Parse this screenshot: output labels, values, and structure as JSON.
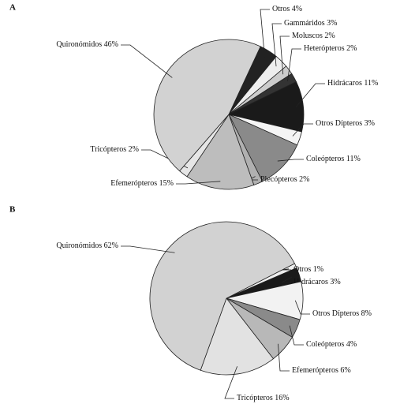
{
  "chart_data": [
    {
      "type": "pie",
      "title": "A",
      "categories": [
        "Otros",
        "Gammáridos",
        "Moluscos",
        "Heterópteros",
        "Hidrácaros",
        "Otros Dípteros",
        "Coleópteros",
        "Plecópteros",
        "Efemerópteros",
        "Tricópteros",
        "Quironómidos"
      ],
      "values": [
        4,
        3,
        2,
        2,
        11,
        3,
        11,
        2,
        15,
        2,
        46
      ],
      "value_labels": [
        "4%",
        "3%",
        "2%",
        "2%",
        "11%",
        "3%",
        "11%",
        "2%",
        "15%",
        "2%",
        "46%"
      ],
      "colors": [
        "#222222",
        "#eeeeee",
        "#cccccc",
        "#333333",
        "#1a1a1a",
        "#f4f4f4",
        "#8a8a8a",
        "#b0b0b0",
        "#bdbdbd",
        "#e6e6e6",
        "#d2d2d2"
      ]
    },
    {
      "type": "pie",
      "title": "B",
      "categories": [
        "Otros",
        "Hidrácaros",
        "Otros Dípteros",
        "Coleópteros",
        "Efemerópteros",
        "Tricópteros",
        "Quironómidos"
      ],
      "values": [
        1,
        3,
        8,
        4,
        6,
        16,
        62
      ],
      "value_labels": [
        "1%",
        "3%",
        "8%",
        "4%",
        "6%",
        "16%",
        "62%"
      ],
      "colors": [
        "#eeeeee",
        "#1a1a1a",
        "#f2f2f2",
        "#8a8a8a",
        "#b8b8b8",
        "#e2e2e2",
        "#d2d2d2"
      ]
    }
  ]
}
